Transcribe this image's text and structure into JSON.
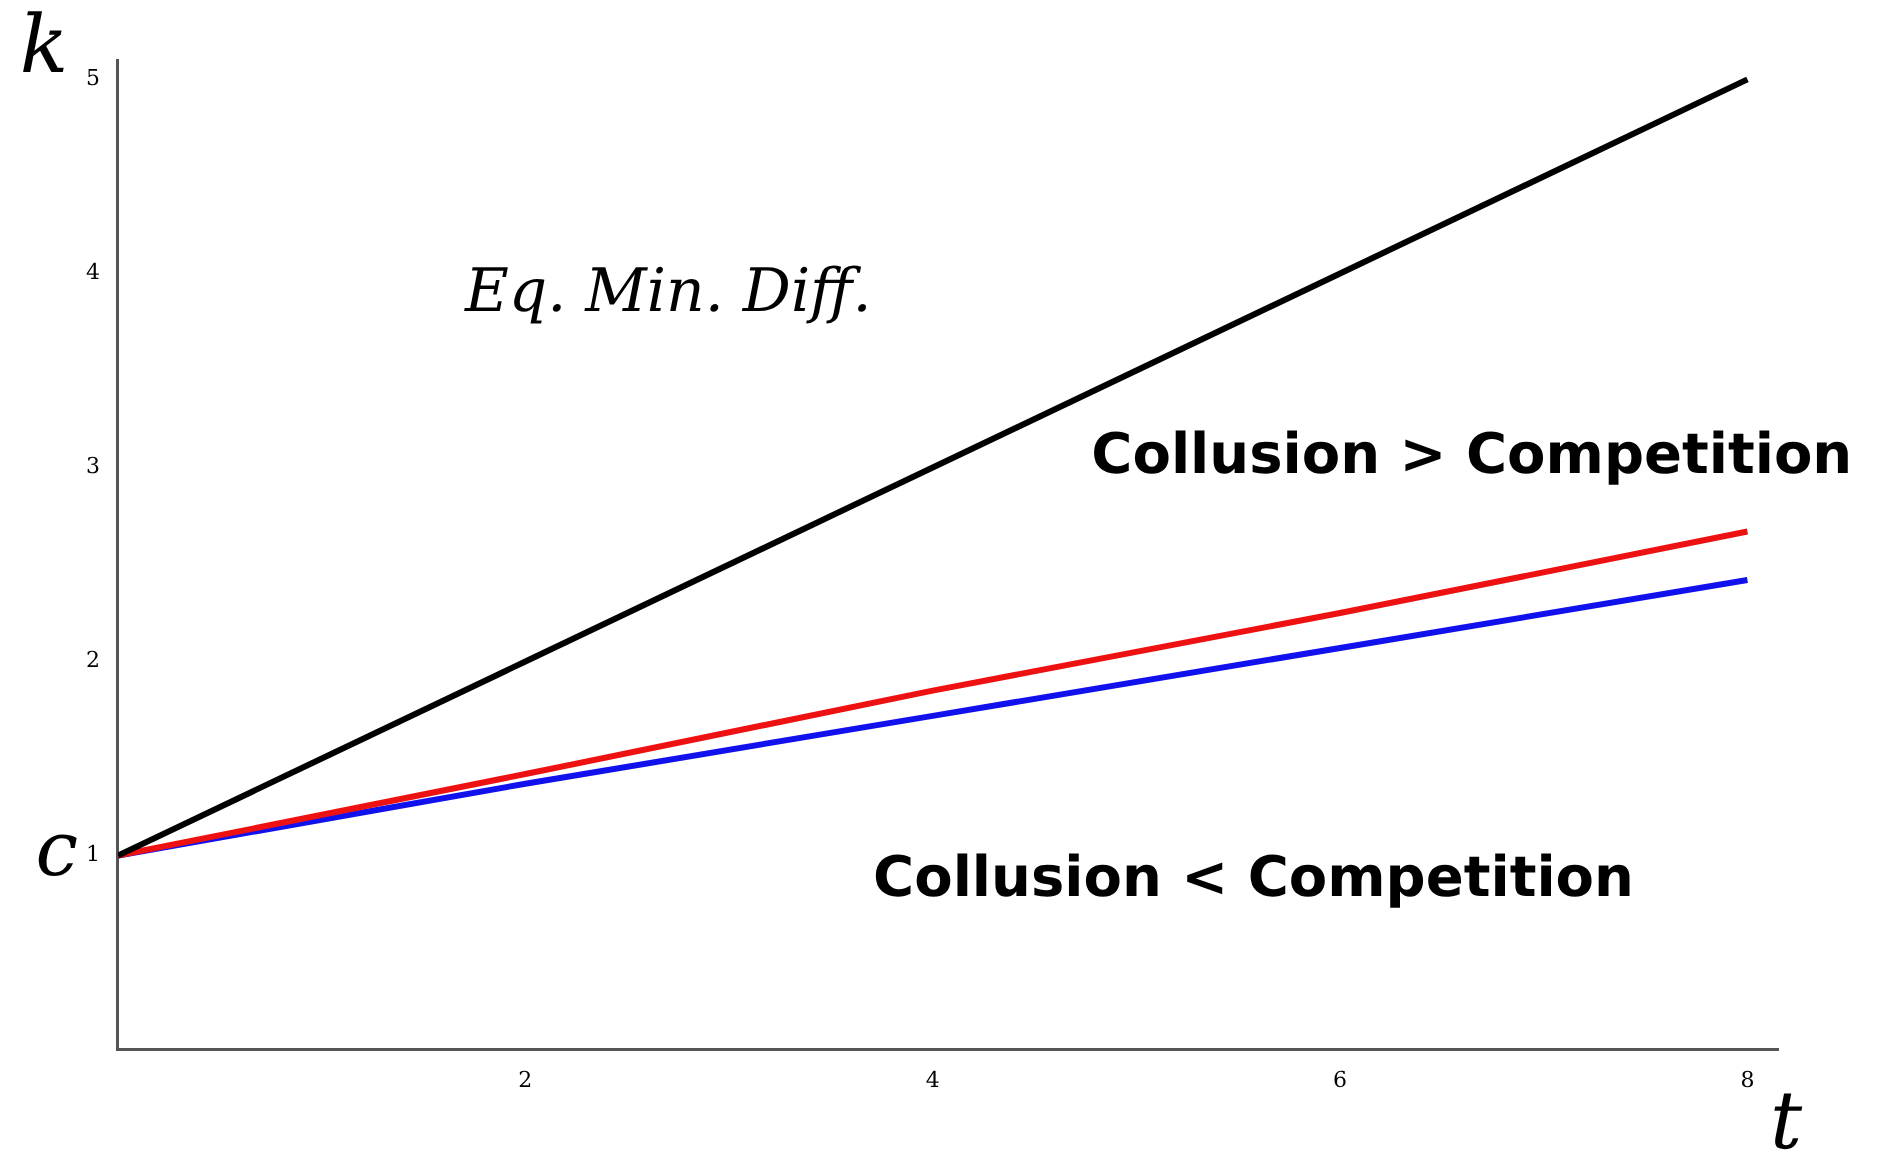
{
  "chart_data": {
    "type": "line",
    "xlabel": "t",
    "ylabel": "k",
    "xlim": [
      0,
      8.15
    ],
    "ylim": [
      0,
      5.1
    ],
    "xticks": [
      2,
      4,
      6,
      8
    ],
    "yticks": [
      1,
      2,
      3,
      4,
      5
    ],
    "grid": false,
    "legend": false,
    "marker": "none",
    "line_style": "solid",
    "series": [
      {
        "color": "#000000",
        "x": [
          0,
          2,
          4,
          6,
          8
        ],
        "values": [
          1,
          2,
          3,
          4,
          5
        ]
      },
      {
        "color": "#ee1111",
        "x": [
          0,
          2,
          4,
          6,
          8
        ],
        "values": [
          1,
          1.42,
          1.85,
          2.25,
          2.67
        ]
      },
      {
        "color": "#1111ee",
        "x": [
          0,
          2,
          4,
          6,
          8
        ],
        "values": [
          1,
          1.37,
          1.72,
          2.07,
          2.42
        ]
      }
    ],
    "annotations": [
      {
        "text": "c",
        "x": 0,
        "y": 1
      },
      "Eq. Min. Diff.",
      "Collusion > Competition",
      "Collusion < Competition"
    ]
  }
}
